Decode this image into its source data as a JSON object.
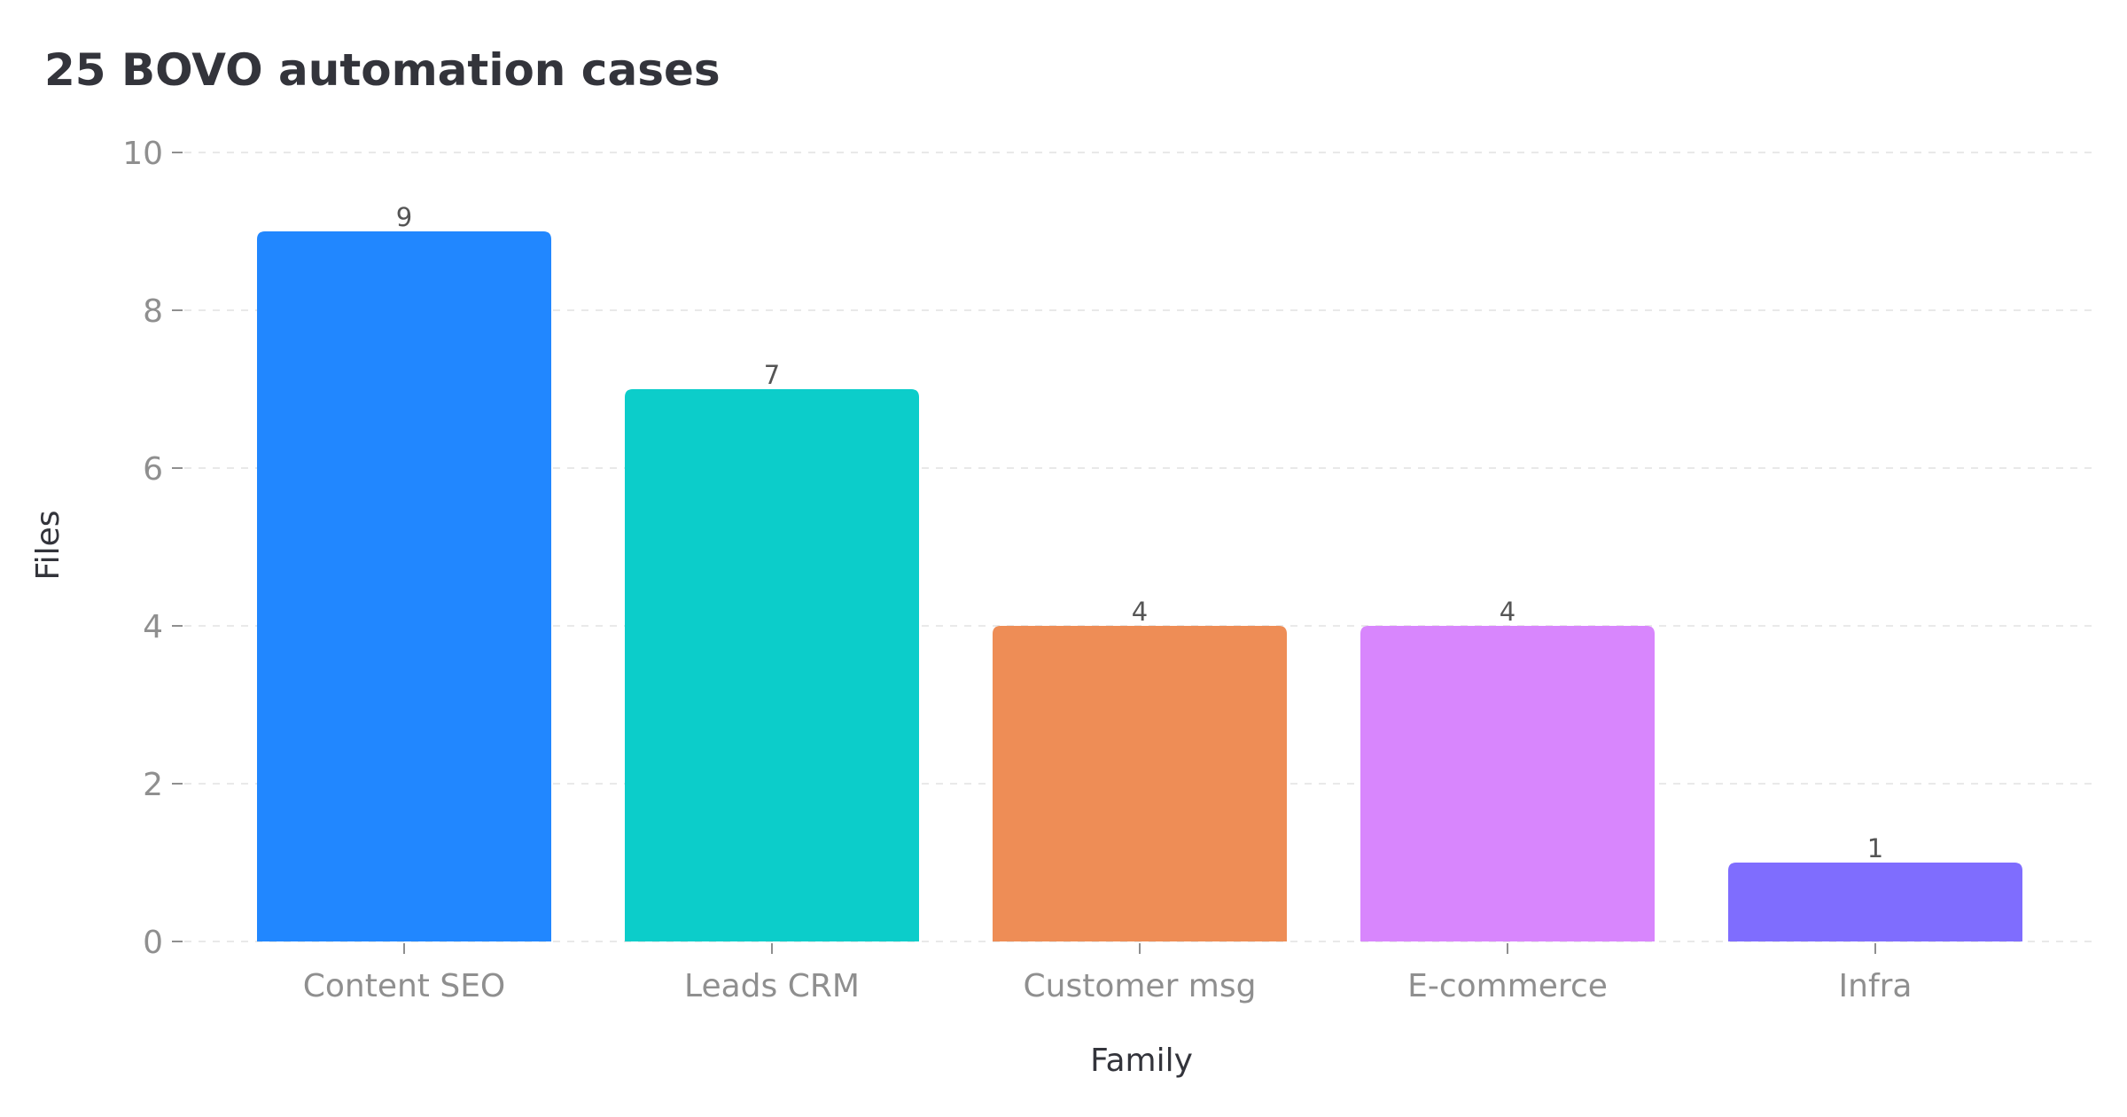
{
  "chart_data": {
    "type": "bar",
    "title": "25 BOVO automation cases",
    "xlabel": "Family",
    "ylabel": "Files",
    "categories": [
      "Content SEO",
      "Leads CRM",
      "Customer msg",
      "E-commerce",
      "Infra"
    ],
    "values": [
      9,
      7,
      4,
      4,
      1
    ],
    "data_labels": [
      "9",
      "7",
      "4",
      "4",
      "1"
    ],
    "colors": [
      "#2187ff",
      "#0ccdca",
      "#ee8d56",
      "#d886fd",
      "#7f6dfe"
    ],
    "ylim": [
      0,
      10
    ],
    "yticks": [
      0,
      2,
      4,
      6,
      8,
      10
    ],
    "ytick_labels": [
      "0",
      "2",
      "4",
      "6",
      "8",
      "10"
    ],
    "grid": true,
    "legend": "none"
  }
}
